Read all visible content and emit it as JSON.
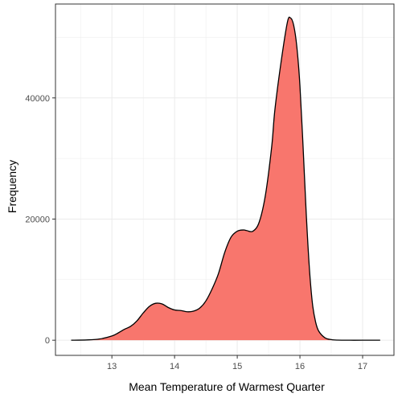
{
  "chart_data": {
    "type": "area",
    "title": "",
    "xlabel": "Mean Temperature of Warmest Quarter",
    "ylabel": "Frequency",
    "xlim": [
      12.1,
      17.5
    ],
    "ylim": [
      -2500,
      55500
    ],
    "x_ticks": [
      13,
      14,
      15,
      16,
      17
    ],
    "y_ticks": [
      0,
      20000,
      40000
    ],
    "x_tick_labels": [
      "13",
      "14",
      "15",
      "16",
      "17"
    ],
    "y_tick_labels": [
      "0",
      "20000",
      "40000"
    ],
    "grid": true,
    "legend": "none",
    "fill_color": "#F8766D",
    "line_color": "#000000",
    "series": [
      {
        "x": [
          12.35,
          12.6,
          12.8,
          13.0,
          13.1,
          13.2,
          13.3,
          13.4,
          13.5,
          13.6,
          13.7,
          13.8,
          13.9,
          14.0,
          14.1,
          14.2,
          14.3,
          14.4,
          14.5,
          14.6,
          14.7,
          14.8,
          14.9,
          15.0,
          15.1,
          15.15,
          15.25,
          15.35,
          15.45,
          15.55,
          15.6,
          15.7,
          15.8,
          15.85,
          15.9,
          15.95,
          16.0,
          16.05,
          16.1,
          16.15,
          16.2,
          16.25,
          16.3,
          16.4,
          16.5,
          16.6,
          16.8,
          17.0,
          17.28
        ],
        "y": [
          0,
          50,
          200,
          700,
          1200,
          1800,
          2300,
          3200,
          4500,
          5600,
          6100,
          6000,
          5400,
          5000,
          4900,
          4700,
          4800,
          5300,
          6500,
          8500,
          11000,
          14500,
          17000,
          18000,
          18200,
          18100,
          18000,
          19500,
          24000,
          32000,
          38000,
          46000,
          52500,
          53200,
          52000,
          48500,
          42000,
          32000,
          21000,
          12000,
          6000,
          3000,
          1500,
          400,
          100,
          20,
          0,
          0,
          0
        ]
      }
    ]
  }
}
